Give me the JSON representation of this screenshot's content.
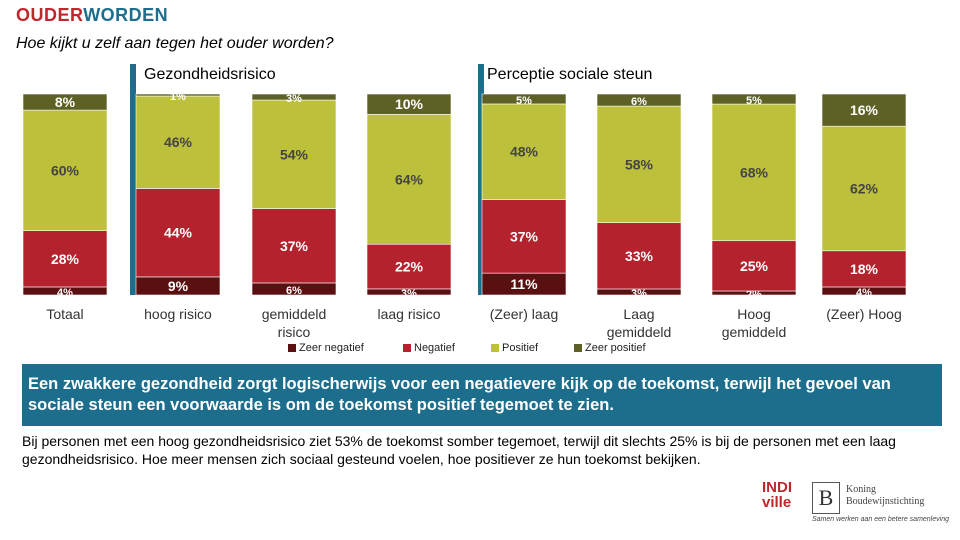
{
  "header": {
    "brand_part1": "OUDER",
    "brand_part2": "WORDEN",
    "subtitle": "Hoe kijkt u zelf aan tegen het ouder worden?"
  },
  "colors": {
    "zeer_negatief": "#5a1010",
    "negatief": "#b3222d",
    "positief": "#bcc03a",
    "zeer_positief": "#5e6126",
    "accent_blue": "#1c6e8c"
  },
  "chart_data": {
    "type": "bar",
    "stacked": true,
    "normalized": true,
    "groups": [
      {
        "title": "Gezondheidsrisico",
        "categories": [
          "hoog risico",
          "gemiddeld risico",
          "laag risico"
        ]
      },
      {
        "title": "Perceptie sociale steun",
        "categories": [
          "(Zeer) laag",
          "Laag gemiddeld",
          "Hoog gemiddeld",
          "(Zeer) Hoog"
        ]
      }
    ],
    "categories": [
      "Totaal",
      "hoog risico",
      "gemiddeld risico",
      "laag risico",
      "(Zeer) laag",
      "Laag gemiddeld",
      "Hoog gemiddeld",
      "(Zeer) Hoog"
    ],
    "series": [
      {
        "name": "Zeer negatief",
        "values": [
          4,
          9,
          6,
          3,
          11,
          3,
          2,
          4
        ],
        "labels": [
          "4%",
          "9%",
          "6%",
          "3%",
          "11%",
          "3%",
          "2%",
          "4%"
        ]
      },
      {
        "name": "Negatief",
        "values": [
          28,
          44,
          37,
          22,
          37,
          33,
          25,
          18
        ],
        "labels": [
          "28%",
          "44%",
          "37%",
          "22%",
          "37%",
          "33%",
          "25%",
          "18%"
        ]
      },
      {
        "name": "Positief",
        "values": [
          60,
          46,
          54,
          64,
          48,
          58,
          68,
          62
        ],
        "labels": [
          "60%",
          "46%",
          "54%",
          "64%",
          "48%",
          "58%",
          "68%",
          "62%"
        ]
      },
      {
        "name": "Zeer positief",
        "values": [
          8,
          1,
          3,
          10,
          5,
          6,
          5,
          16
        ],
        "labels": [
          "8%",
          "1%",
          "3%",
          "10%",
          "5%",
          "6%",
          "5%",
          "16%"
        ]
      }
    ],
    "ylim": [
      0,
      100
    ],
    "legend_position": "bottom"
  },
  "banner": {
    "text": "Een zwakkere gezondheid zorgt logischerwijs voor een negatievere kijk op de toekomst, terwijl het gevoel van sociale steun een voorwaarde is om de toekomst positief tegemoet te zien."
  },
  "body": {
    "text": "Bij personen met een hoog gezondheidsrisico ziet 53% de toekomst somber tegemoet, terwijl dit slechts 25% is bij de personen met een laag gezondheidsrisico. Hoe meer mensen zich sociaal gesteund voelen, hoe positiever ze hun toekomst bekijken."
  },
  "logos": {
    "indiville_line1": "INDI",
    "indiville_line2": "ville",
    "kbs_line1": "Koning",
    "kbs_line2": "Boudewijnstichting",
    "kbs_tagline": "Samen werken aan een betere samenleving"
  }
}
